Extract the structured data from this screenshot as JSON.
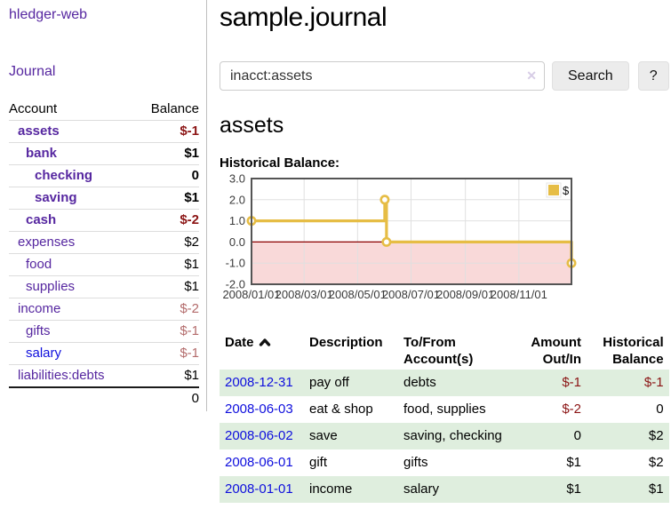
{
  "colors": {
    "purple": "#5627a0",
    "blue": "#0f0fdd",
    "red_strong": "#8b1414",
    "red_soft": "#b36b6b",
    "row_green": "#dfeede",
    "chart_line": "#e6bd45",
    "chart_border": "#545454",
    "chart_grid": "#e0e0e0",
    "chart_neg_fill": "#f9d9d9",
    "chart_zero_line": "#8b0000"
  },
  "app": {
    "brand": "hledger-web",
    "nav_journal": "Journal"
  },
  "sidebar": {
    "headers": {
      "account": "Account",
      "balance": "Balance"
    },
    "rows": [
      {
        "name": "assets",
        "level": 1,
        "bold": true,
        "balance": "$-1",
        "neg": "strong",
        "blue": false
      },
      {
        "name": "bank",
        "level": 2,
        "bold": true,
        "balance": "$1",
        "neg": "",
        "blue": false
      },
      {
        "name": "checking",
        "level": 3,
        "bold": true,
        "balance": "0",
        "neg": "",
        "blue": false
      },
      {
        "name": "saving",
        "level": 3,
        "bold": true,
        "balance": "$1",
        "neg": "",
        "blue": false
      },
      {
        "name": "cash",
        "level": 2,
        "bold": true,
        "balance": "$-2",
        "neg": "strong",
        "blue": false
      },
      {
        "name": "expenses",
        "level": 1,
        "bold": false,
        "balance": "$2",
        "neg": "",
        "blue": false
      },
      {
        "name": "food",
        "level": 2,
        "bold": false,
        "balance": "$1",
        "neg": "",
        "blue": false
      },
      {
        "name": "supplies",
        "level": 2,
        "bold": false,
        "balance": "$1",
        "neg": "",
        "blue": false
      },
      {
        "name": "income",
        "level": 1,
        "bold": false,
        "balance": "$-2",
        "neg": "soft",
        "blue": false
      },
      {
        "name": "gifts",
        "level": 2,
        "bold": false,
        "balance": "$-1",
        "neg": "soft",
        "blue": false
      },
      {
        "name": "salary",
        "level": 2,
        "bold": false,
        "balance": "$-1",
        "neg": "soft",
        "blue": true
      },
      {
        "name": "liabilities:debts",
        "level": 1,
        "bold": false,
        "balance": "$1",
        "neg": "",
        "blue": false
      }
    ],
    "total": "0"
  },
  "header": {
    "title": "sample.journal"
  },
  "search": {
    "query": "inacct:assets",
    "clear_icon": "✕",
    "button_label": "Search",
    "help_label": "?"
  },
  "account_page": {
    "heading": "assets",
    "chart_title": "Historical Balance:"
  },
  "chart_data": {
    "type": "line",
    "subtype": "step",
    "title": "Historical Balance",
    "x_range": [
      "2008-01-01",
      "2008-12-31"
    ],
    "ylim": [
      -2.0,
      3.0
    ],
    "yticks": [
      "3.0",
      "2.0",
      "1.0",
      "0.0",
      "-1.0",
      "-2.0"
    ],
    "ytick_values": [
      3,
      2,
      1,
      0,
      -1,
      -2
    ],
    "xticks": [
      "2008/01/01",
      "2008/03/01",
      "2008/05/01",
      "2008/07/01",
      "2008/09/01",
      "2008/11/01"
    ],
    "xtick_dates": [
      "2008-01-01",
      "2008-03-01",
      "2008-05-01",
      "2008-07-01",
      "2008-09-01",
      "2008-11-01"
    ],
    "grid": true,
    "legend_position": "top-right",
    "series": [
      {
        "name": "$",
        "points": [
          [
            "2008-01-01",
            1
          ],
          [
            "2008-06-01",
            2
          ],
          [
            "2008-06-03",
            0
          ],
          [
            "2008-12-31",
            -1
          ]
        ]
      }
    ],
    "negative_region_shaded": true
  },
  "register": {
    "headers": {
      "date": "Date",
      "description": "Description",
      "accounts": "To/From Account(s)",
      "amount": "Amount Out/In",
      "balance": "Historical Balance"
    },
    "rows": [
      {
        "date": "2008-12-31",
        "description": "pay off",
        "accounts": "debts",
        "amount": "$-1",
        "amount_neg": true,
        "balance": "$-1",
        "balance_neg": true,
        "shaded": true
      },
      {
        "date": "2008-06-03",
        "description": "eat & shop",
        "accounts": "food, supplies",
        "amount": "$-2",
        "amount_neg": true,
        "balance": "0",
        "balance_neg": false,
        "shaded": false
      },
      {
        "date": "2008-06-02",
        "description": "save",
        "accounts": "saving, checking",
        "amount": "0",
        "amount_neg": false,
        "balance": "$2",
        "balance_neg": false,
        "shaded": true
      },
      {
        "date": "2008-06-01",
        "description": "gift",
        "accounts": "gifts",
        "amount": "$1",
        "amount_neg": false,
        "balance": "$2",
        "balance_neg": false,
        "shaded": false
      },
      {
        "date": "2008-01-01",
        "description": "income",
        "accounts": "salary",
        "amount": "$1",
        "amount_neg": false,
        "balance": "$1",
        "balance_neg": false,
        "shaded": true
      }
    ]
  }
}
